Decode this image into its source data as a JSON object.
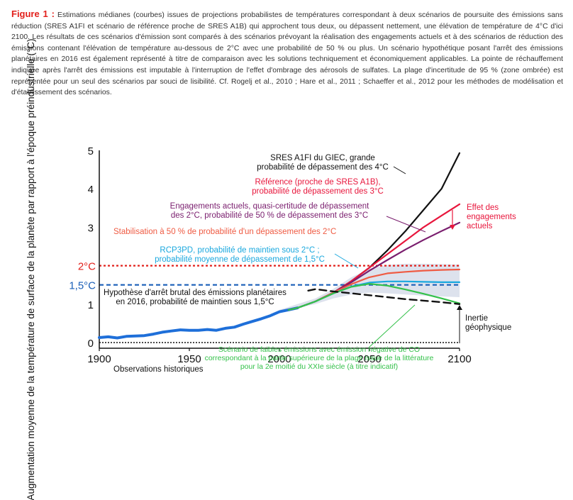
{
  "caption": {
    "figure_label": "Figure 1 :",
    "text": "Estimations médianes (courbes) issues de projections probabilistes de températures correspondant à deux scénarios de poursuite des émissions sans réduction (SRES A1FI et scénario de référence proche de SRES A1B) qui approchent tous deux, ou dépassent nettement, une élévation de température de 4°C d'ici 2100. Les résultats de ces scénarios d'émission sont comparés à des scénarios prévoyant la réalisation des engagements actuels et à des scénarios de réduction des émissions contenant l'élévation de température au-dessous de 2°C avec une probabilité de 50 % ou plus. Un scénario hypothétique posant l'arrêt des émissions planétaires en 2016 est également représenté à titre de comparaison avec les solutions techniquement et économiquement applicables. La pointe de réchauffement indiquée après l'arrêt des émissions est imputable à l'interruption de l'effet d'ombrage des aérosols de sulfates. La plage d'incertitude de 95 % (zone ombrée) est représentée pour un seul des scénarios par souci de lisibilité. Cf. Rogelj et al., 2010 ; Hare et al., 2011 ; Schaeffer et al., 2012 pour les méthodes de modélisation et d'établissement des scénarios."
  },
  "colors": {
    "figure_label": "#e2211c",
    "a1fi": "#111111",
    "reference": "#e8163c",
    "engagements": "#7a1e6e",
    "stabilisation": "#ef5b43",
    "rcp3pd": "#1aa8de",
    "low_emissions": "#34c14a",
    "stop_2016": "#111111",
    "observations": "#1e6fd9",
    "threshold_2c": "#e2211c",
    "threshold_15c": "#1a5fb8",
    "uncertainty": "#cfd6e6"
  },
  "chart_data": {
    "type": "line",
    "xlabel": "",
    "ylabel": "Augmentation moyenne de la température de surface de la planète par rapport à l'époque préindustrielle (°C)",
    "xlim": [
      1900,
      2100
    ],
    "ylim": [
      0,
      5
    ],
    "x_ticks": [
      "1900",
      "1950",
      "2000",
      "2050",
      "2100"
    ],
    "y_ticks": [
      "0",
      "1",
      "2",
      "3",
      "4",
      "5"
    ],
    "thresholds": [
      {
        "label": "2°C",
        "value": 2.0,
        "style": "dotted",
        "color_key": "threshold_2c"
      },
      {
        "label": "1,5°C",
        "value": 1.5,
        "style": "dashed",
        "color_key": "threshold_15c"
      }
    ],
    "uncertainty_band": {
      "x": [
        2000,
        2020,
        2030,
        2040,
        2050,
        2060,
        2070,
        2080,
        2090,
        2100
      ],
      "lower": [
        0.8,
        1.0,
        1.15,
        1.25,
        1.3,
        1.28,
        1.25,
        1.22,
        1.2,
        1.18
      ],
      "upper": [
        0.85,
        1.15,
        1.4,
        1.7,
        1.92,
        2.02,
        2.05,
        2.05,
        2.04,
        2.03
      ]
    },
    "series": [
      {
        "key": "observations",
        "x": [
          1900,
          1905,
          1910,
          1915,
          1920,
          1925,
          1930,
          1935,
          1940,
          1945,
          1950,
          1955,
          1960,
          1965,
          1970,
          1975,
          1980,
          1985,
          1990,
          1995,
          2000,
          2005,
          2010
        ],
        "values": [
          0.13,
          0.15,
          0.12,
          0.16,
          0.17,
          0.18,
          0.22,
          0.27,
          0.3,
          0.33,
          0.32,
          0.32,
          0.34,
          0.32,
          0.37,
          0.4,
          0.48,
          0.55,
          0.62,
          0.7,
          0.8,
          0.85,
          0.9
        ]
      },
      {
        "key": "a1fi",
        "x": [
          2005,
          2010,
          2020,
          2030,
          2040,
          2050,
          2060,
          2070,
          2080,
          2090,
          2100
        ],
        "values": [
          0.85,
          0.9,
          1.07,
          1.3,
          1.6,
          1.95,
          2.4,
          2.9,
          3.45,
          4.0,
          4.93
        ]
      },
      {
        "key": "reference",
        "x": [
          2005,
          2010,
          2020,
          2030,
          2040,
          2050,
          2060,
          2070,
          2080,
          2090,
          2100
        ],
        "values": [
          0.85,
          0.9,
          1.07,
          1.3,
          1.6,
          1.95,
          2.3,
          2.65,
          3.0,
          3.3,
          3.6
        ]
      },
      {
        "key": "engagements",
        "x": [
          2005,
          2010,
          2020,
          2030,
          2040,
          2050,
          2060,
          2070,
          2080,
          2090,
          2100
        ],
        "values": [
          0.85,
          0.9,
          1.07,
          1.3,
          1.57,
          1.87,
          2.15,
          2.42,
          2.67,
          2.9,
          3.12
        ]
      },
      {
        "key": "stabilisation",
        "x": [
          2005,
          2010,
          2020,
          2030,
          2040,
          2050,
          2060,
          2070,
          2080,
          2090,
          2100
        ],
        "values": [
          0.85,
          0.9,
          1.07,
          1.3,
          1.52,
          1.7,
          1.8,
          1.84,
          1.87,
          1.89,
          1.9
        ]
      },
      {
        "key": "rcp3pd",
        "x": [
          2005,
          2010,
          2020,
          2030,
          2040,
          2050,
          2060,
          2070,
          2080,
          2090,
          2100
        ],
        "values": [
          0.85,
          0.9,
          1.07,
          1.28,
          1.46,
          1.56,
          1.59,
          1.59,
          1.58,
          1.57,
          1.57
        ]
      },
      {
        "key": "low_emissions",
        "x": [
          2005,
          2010,
          2020,
          2030,
          2040,
          2050,
          2060,
          2070,
          2080,
          2090,
          2100
        ],
        "values": [
          0.85,
          0.9,
          1.07,
          1.28,
          1.45,
          1.53,
          1.48,
          1.38,
          1.27,
          1.15,
          1.02
        ]
      },
      {
        "key": "stop_2016",
        "style": "dashed",
        "x": [
          2016,
          2020,
          2025,
          2030,
          2040,
          2050,
          2060,
          2070,
          2080,
          2090,
          2100
        ],
        "values": [
          1.35,
          1.39,
          1.36,
          1.33,
          1.28,
          1.23,
          1.18,
          1.13,
          1.09,
          1.05,
          1.0
        ]
      }
    ],
    "annotations": {
      "a1fi": "SRES A1FI du GIEC, grande\nprobabilité de dépassement des 4°C",
      "reference": "Référence (proche de SRES A1B),\nprobabilité de dépassement des 3°C",
      "engagements": "Engagements actuels, quasi-certitude de dépassement\ndes 2°C, probabilité de 50 % de dépassement des 3°C",
      "stabilisation": "Stabilisation à 50 % de probabilité d'un dépassement des 2°C",
      "rcp3pd": "RCP3PD, probabilité de maintien sous 2°C ;\nprobabilité moyenne de dépassement de 1,5°C",
      "stop_2016": "Hypothèse d'arrêt brutal des émissions planétaires\nen 2016, probabilité de maintien sous 1,5°C",
      "low_emissions": "Scénario de faibles émissions avec émission négative de CO\ncorrespondant à la partie supérieure de la plage issue de la littérature\npour la 2e moitié du XXIe siècle (à titre indicatif)",
      "observations": "Observations historiques",
      "effet": "Effet des\nengagements\nactuels",
      "inertie": "Inertie\ngéophysique"
    }
  }
}
